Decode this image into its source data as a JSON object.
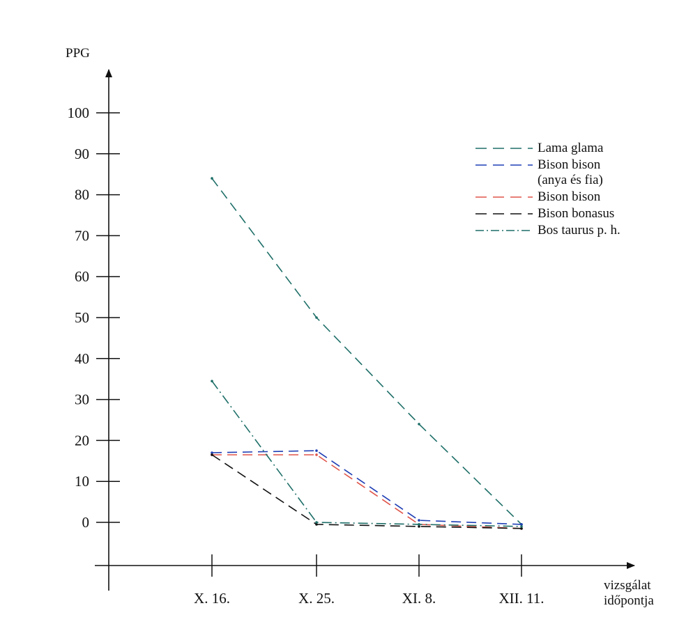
{
  "chart_data": {
    "type": "line",
    "ylabel": "PPG",
    "xlabel": [
      "vizsgálat",
      "időpontja"
    ],
    "categories": [
      "X. 16.",
      "X. 25.",
      "XI. 8.",
      "XII. 11."
    ],
    "yticks": [
      "0",
      "10",
      "20",
      "30",
      "40",
      "50",
      "60",
      "70",
      "80",
      "90",
      "100"
    ],
    "ylim": [
      -10,
      110
    ],
    "grid": false,
    "legend_position": "top-right",
    "series": [
      {
        "name": "Lama glama",
        "legend_lines": [
          "Lama glama"
        ],
        "values": [
          84,
          50,
          24,
          -0.5
        ],
        "color": "#1e6f68",
        "style": "dashed"
      },
      {
        "name": "Bison bison (anya és fia)",
        "legend_lines": [
          "Bison bison",
          "(anya és fia)"
        ],
        "values": [
          17,
          17.5,
          0.5,
          -0.5
        ],
        "color": "#1f3fb5",
        "style": "dashed"
      },
      {
        "name": "Bison bison",
        "legend_lines": [
          "Bison bison"
        ],
        "values": [
          16.5,
          16.5,
          -0.5,
          -1.5
        ],
        "color": "#e0554a",
        "style": "dashed"
      },
      {
        "name": "Bison bonasus",
        "legend_lines": [
          "Bison bonasus"
        ],
        "values": [
          16.5,
          -0.5,
          -1,
          -1.5
        ],
        "color": "#111111",
        "style": "dashed"
      },
      {
        "name": "Bos taurus p. h.",
        "legend_lines": [
          "Bos taurus p. h."
        ],
        "values": [
          34.5,
          0,
          -0.5,
          -1
        ],
        "color": "#1e6f68",
        "style": "dashdot"
      }
    ]
  }
}
